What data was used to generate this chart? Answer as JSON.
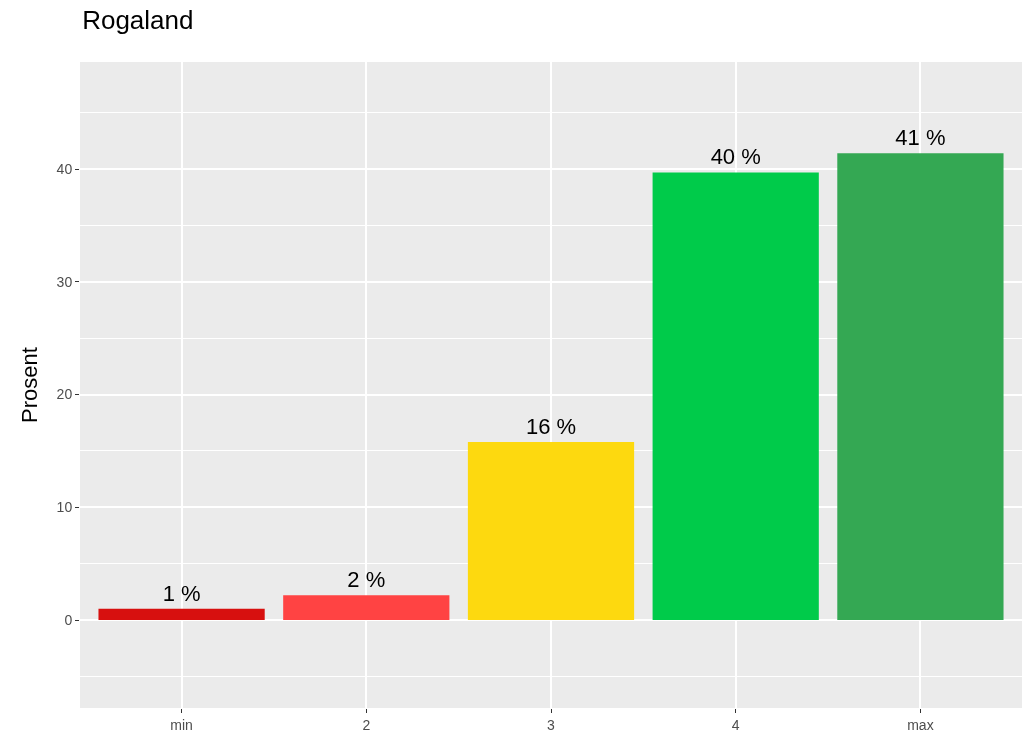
{
  "chart_data": {
    "type": "bar",
    "title": "Rogaland",
    "ylabel": "Prosent",
    "categories": [
      "min",
      "2",
      "3",
      "4",
      "max"
    ],
    "values": [
      1.0,
      2.2,
      15.8,
      39.7,
      41.4
    ],
    "colors": [
      "#d7100f",
      "#ff4343",
      "#fdd90f",
      "#00cb4a",
      "#34a853"
    ],
    "value_labels": [
      "1 %",
      "2 %",
      "16 %",
      "40 %",
      "41 %"
    ],
    "ylim": [
      -7.8,
      49.5
    ],
    "yticks": [
      0,
      10,
      20,
      30,
      40
    ],
    "grid": true
  }
}
